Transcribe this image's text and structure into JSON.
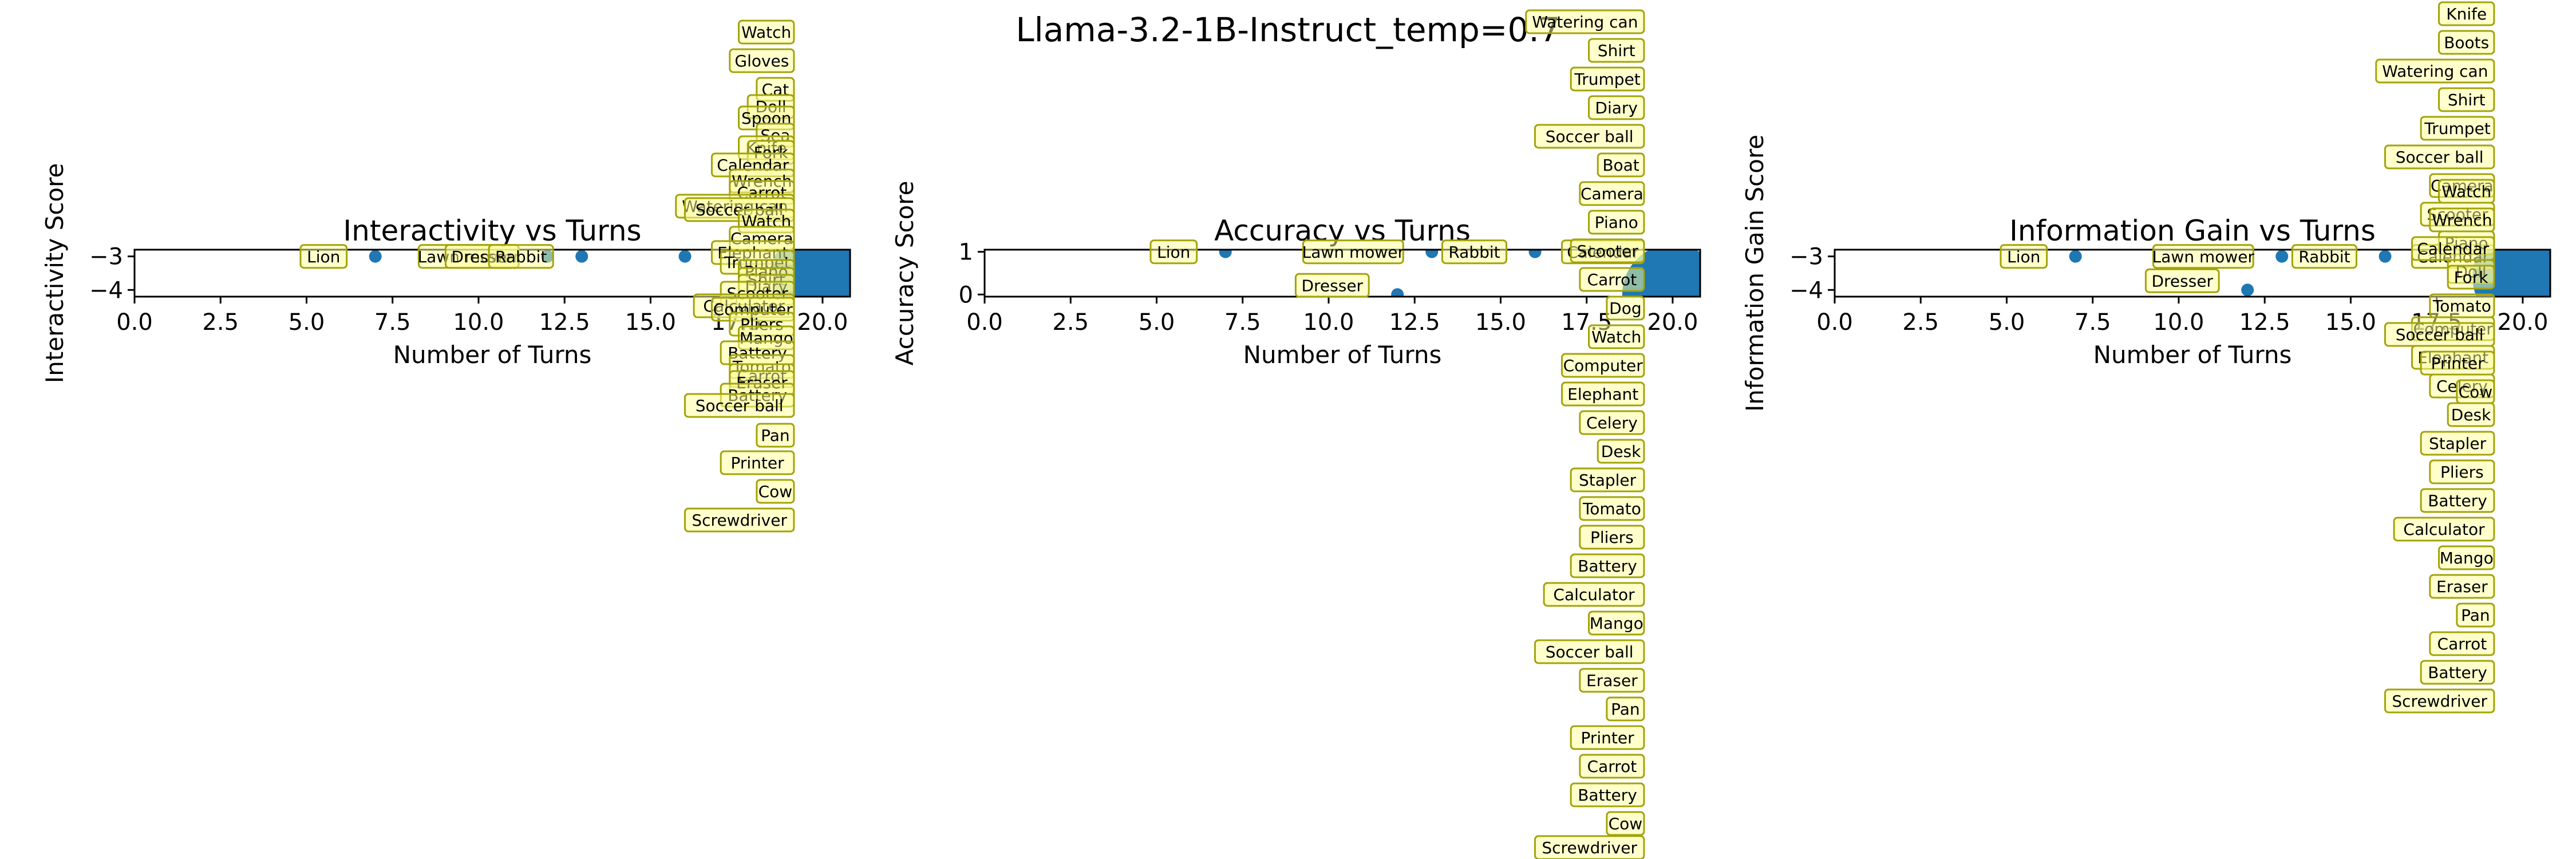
{
  "figure": {
    "suptitle": "Llama-3.2-1B-Instruct_temp=0.7",
    "point_color": "#1f77b4"
  },
  "chart_data": [
    {
      "type": "scatter",
      "title": "Interactivity vs Turns",
      "xlabel": "Number of Turns",
      "ylabel": "Interactivity Score",
      "xlim": [
        0,
        20.8
      ],
      "ylim": [
        -4.2,
        -2.8
      ],
      "xticks": [
        "0.0",
        "2.5",
        "5.0",
        "7.5",
        "10.0",
        "12.5",
        "15.0",
        "17.5",
        "20.0"
      ],
      "yticks": [
        "−3",
        "−4"
      ],
      "grid": false,
      "points": [
        {
          "x": 7,
          "y": -3,
          "label": "Lion",
          "size": "small"
        },
        {
          "x": 12,
          "y": -3,
          "label": "Lawn mower",
          "size": "small"
        },
        {
          "x": 12,
          "y": -3,
          "label": "Dresser",
          "size": "small"
        },
        {
          "x": 13,
          "y": -3,
          "label": "Rabbit",
          "size": "small"
        },
        {
          "x": 16,
          "y": -3,
          "label": "",
          "size": "small"
        },
        {
          "x": 20,
          "y": -3.5,
          "label": "",
          "size": "large"
        }
      ],
      "stacked_labels_x": 20,
      "stacked_labels": [
        "Watch",
        "Gloves",
        "Cat",
        "Doll",
        "Spoon",
        "Sea",
        "Knife",
        "Fork",
        "Calendar",
        "Wrench",
        "Carrot",
        "Watering can",
        "Soccer ball",
        "Watch",
        "Camera",
        "Elephant",
        "Trumpet",
        "Piano",
        "Shirt",
        "Diary",
        "Scooter",
        "Calculator",
        "Computer",
        "Pliers",
        "Mango",
        "Battery",
        "Tomato",
        "Carrot",
        "Eraser",
        "Battery",
        "Soccer ball",
        "Pan",
        "Printer",
        "Cow",
        "Screwdriver"
      ]
    },
    {
      "type": "scatter",
      "title": "Accuracy vs Turns",
      "xlabel": "Number of Turns",
      "ylabel": "Accuracy Score",
      "xlim": [
        0,
        20.8
      ],
      "ylim": [
        -0.05,
        1.05
      ],
      "xticks": [
        "0.0",
        "2.5",
        "5.0",
        "7.5",
        "10.0",
        "12.5",
        "15.0",
        "17.5",
        "20.0"
      ],
      "yticks": [
        "1",
        "0"
      ],
      "grid": false,
      "points": [
        {
          "x": 7,
          "y": 1,
          "label": "Lion",
          "size": "small"
        },
        {
          "x": 13,
          "y": 1,
          "label": "Lawn mower",
          "size": "small"
        },
        {
          "x": 16,
          "y": 1,
          "label": "Rabbit",
          "size": "small"
        },
        {
          "x": 20,
          "y": 1,
          "label": "Calendar",
          "size": "small"
        },
        {
          "x": 12,
          "y": 0,
          "label": "Dresser",
          "size": "small"
        },
        {
          "x": 20,
          "y": 0,
          "label": "",
          "size": "large"
        }
      ],
      "stacked_labels_x": 20,
      "stacked_labels": [
        "Watering can",
        "Shirt",
        "Trumpet",
        "Diary",
        "Soccer ball",
        "Boat",
        "Camera",
        "Piano",
        "Scooter",
        "Carrot",
        "Dog",
        "Watch",
        "Computer",
        "Elephant",
        "Celery",
        "Desk",
        "Stapler",
        "Tomato",
        "Pliers",
        "Battery",
        "Calculator",
        "Mango",
        "Soccer ball",
        "Eraser",
        "Pan",
        "Printer",
        "Carrot",
        "Battery",
        "Cow",
        "Screwdriver"
      ]
    },
    {
      "type": "scatter",
      "title": "Information Gain vs Turns",
      "xlabel": "Number of Turns",
      "ylabel": "Information Gain Score",
      "xlim": [
        0,
        20.8
      ],
      "ylim": [
        -4.2,
        -2.8
      ],
      "xticks": [
        "0.0",
        "2.5",
        "5.0",
        "7.5",
        "10.0",
        "12.5",
        "15.0",
        "17.5",
        "20.0"
      ],
      "yticks": [
        "−3",
        "−4"
      ],
      "grid": false,
      "points": [
        {
          "x": 7,
          "y": -3,
          "label": "Lion",
          "size": "small"
        },
        {
          "x": 13,
          "y": -3,
          "label": "Lawn mower",
          "size": "small"
        },
        {
          "x": 16,
          "y": -3,
          "label": "Rabbit",
          "size": "small"
        },
        {
          "x": 20,
          "y": -3,
          "label": "Calendar",
          "size": "small"
        },
        {
          "x": 12,
          "y": -4,
          "label": "Dresser",
          "size": "small"
        },
        {
          "x": 20,
          "y": -3.6,
          "label": "",
          "size": "large"
        }
      ],
      "stacked_labels_x": 20,
      "stacked_labels": [
        "Knife",
        "Boots",
        "Watering can",
        "Shirt",
        "Trumpet",
        "Soccer ball",
        "Camera",
        "Watch",
        "Scooter",
        "Wrench",
        "Piano",
        "Calendar",
        "Doll",
        "Fork",
        "Tomato",
        "Computer",
        "Soccer ball",
        "Elephant",
        "Printer",
        "Celery",
        "Cow",
        "Desk",
        "Stapler",
        "Pliers",
        "Battery",
        "Calculator",
        "Mango",
        "Eraser",
        "Pan",
        "Carrot",
        "Battery",
        "Screwdriver"
      ]
    }
  ]
}
